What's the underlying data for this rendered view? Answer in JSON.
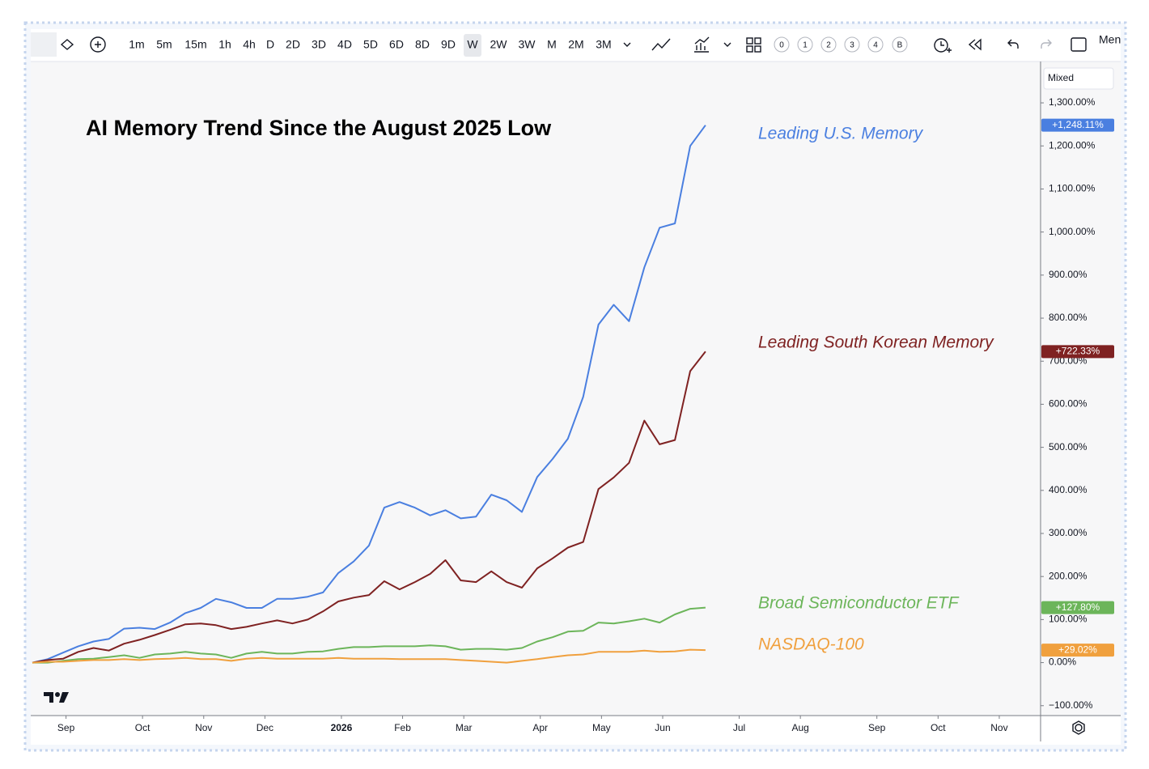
{
  "toolbar": {
    "intervals": [
      "1m",
      "5m",
      "15m",
      "1h",
      "4h",
      "D",
      "2D",
      "3D",
      "4D",
      "5D",
      "6D",
      "8D",
      "9D",
      "W",
      "2W",
      "3W",
      "M",
      "2M",
      "3M"
    ],
    "active_interval": "W",
    "layouts": [
      "0",
      "1",
      "2",
      "3",
      "4",
      "B"
    ],
    "menu": "Men"
  },
  "scale_mode": "Mixed",
  "chart_data": {
    "type": "line",
    "title": "AI Memory Trend Since the August 2025 Low",
    "x": [
      0,
      1,
      2,
      3,
      4,
      5,
      6,
      7,
      8,
      9,
      10,
      11,
      12,
      13,
      14,
      15,
      16,
      17,
      18,
      19,
      20,
      21,
      22,
      23,
      24,
      25,
      26,
      27,
      28,
      29,
      30,
      31,
      32,
      33,
      34,
      35,
      36,
      37,
      38,
      39,
      40,
      41,
      42,
      43,
      44
    ],
    "xlim": [
      0,
      65.9
    ],
    "xticks": [
      {
        "value": 2.2,
        "label": "Sep"
      },
      {
        "value": 7.2,
        "label": "Oct"
      },
      {
        "value": 11.2,
        "label": "Nov"
      },
      {
        "value": 15.2,
        "label": "Dec"
      },
      {
        "value": 20.2,
        "label": "2026",
        "bold": true
      },
      {
        "value": 24.2,
        "label": "Feb"
      },
      {
        "value": 28.2,
        "label": "Mar"
      },
      {
        "value": 33.2,
        "label": "Apr"
      },
      {
        "value": 37.2,
        "label": "May"
      },
      {
        "value": 41.2,
        "label": "Jun"
      },
      {
        "value": 46.2,
        "label": "Jul"
      },
      {
        "value": 50.2,
        "label": "Aug"
      },
      {
        "value": 55.2,
        "label": "Sep"
      },
      {
        "value": 59.2,
        "label": "Oct"
      },
      {
        "value": 63.2,
        "label": "Nov"
      }
    ],
    "ylim": [
      -123,
      1396
    ],
    "yticks": [
      {
        "value": -100,
        "label": "−100.00%"
      },
      {
        "value": 0,
        "label": "0.00%"
      },
      {
        "value": 100,
        "label": "100.00%"
      },
      {
        "value": 200,
        "label": "200.00%"
      },
      {
        "value": 300,
        "label": "300.00%"
      },
      {
        "value": 400,
        "label": "400.00%"
      },
      {
        "value": 500,
        "label": "500.00%"
      },
      {
        "value": 600,
        "label": "600.00%"
      },
      {
        "value": 700,
        "label": "700.00%"
      },
      {
        "value": 800,
        "label": "800.00%"
      },
      {
        "value": 900,
        "label": "900.00%"
      },
      {
        "value": 1000,
        "label": "1,000.00%"
      },
      {
        "value": 1100,
        "label": "1,100.00%"
      },
      {
        "value": 1200,
        "label": "1,200.00%"
      },
      {
        "value": 1300,
        "label": "1,300.00%"
      }
    ],
    "grid": false,
    "series": [
      {
        "name": "Leading U.S. Memory",
        "color": "#4a7fe0",
        "last_label": "+1,248.11%",
        "values": [
          0,
          8,
          23,
          38,
          49,
          55,
          79,
          81,
          78,
          93,
          115,
          127,
          148,
          140,
          127,
          127,
          148,
          148,
          153,
          163,
          208,
          235,
          272,
          360,
          373,
          360,
          342,
          354,
          335,
          339,
          390,
          377,
          350,
          431,
          473,
          520,
          617,
          785,
          831,
          793,
          918,
          1010,
          1020,
          1200,
          1248.11
        ]
      },
      {
        "name": "Leading South Korean Memory",
        "color": "#7f2222",
        "last_label": "+722.33%",
        "values": [
          0,
          6,
          9,
          25,
          34,
          28,
          44,
          53,
          64,
          76,
          89,
          91,
          87,
          78,
          83,
          91,
          98,
          91,
          100,
          119,
          142,
          151,
          157,
          189,
          170,
          187,
          206,
          238,
          191,
          187,
          212,
          187,
          174,
          219,
          242,
          267,
          280,
          403,
          430,
          464,
          562,
          507,
          517,
          677,
          722.33
        ]
      },
      {
        "name": "Broad Semiconductor ETF",
        "color": "#6cb55a",
        "last_label": "+127.80%",
        "values": [
          0,
          0,
          4,
          8,
          9,
          13,
          17,
          11,
          19,
          21,
          25,
          21,
          19,
          11,
          21,
          25,
          21,
          21,
          25,
          26,
          32,
          36,
          36,
          38,
          38,
          38,
          40,
          38,
          30,
          32,
          32,
          30,
          34,
          49,
          59,
          72,
          74,
          93,
          91,
          96,
          102,
          93,
          112,
          125,
          127.8
        ]
      },
      {
        "name": "NASDAQ-100",
        "color": "#f0a03e",
        "last_label": "+29.02%",
        "values": [
          0,
          2,
          2,
          4,
          6,
          6,
          8,
          6,
          8,
          9,
          11,
          8,
          8,
          4,
          9,
          11,
          9,
          9,
          9,
          9,
          11,
          9,
          9,
          9,
          8,
          8,
          8,
          8,
          6,
          4,
          2,
          0,
          4,
          8,
          13,
          17,
          19,
          25,
          25,
          25,
          28,
          25,
          26,
          30,
          29.02
        ]
      }
    ]
  }
}
